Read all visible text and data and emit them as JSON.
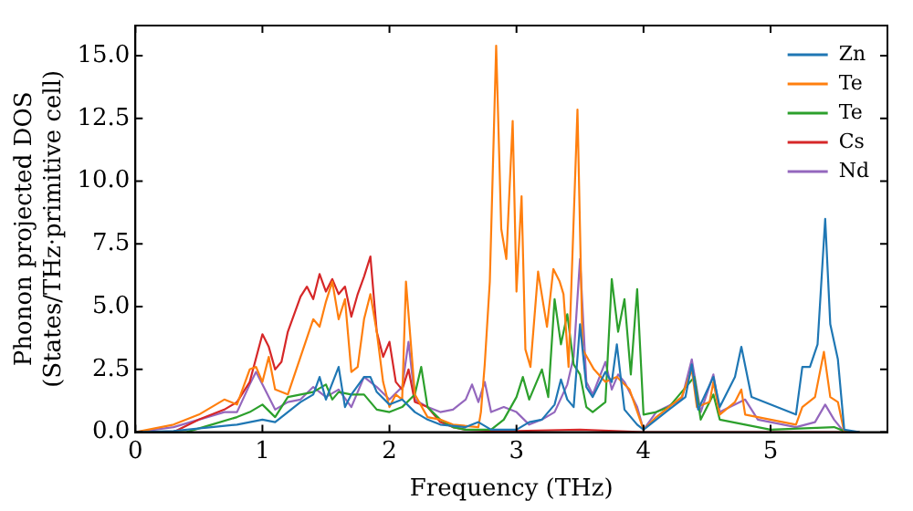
{
  "chart_data": {
    "type": "line",
    "xlabel": "Frequency (THz)",
    "ylabel": "Phonon projected DOS\n(States/THz·primitive cell)",
    "xlim": [
      0,
      5.92
    ],
    "ylim": [
      0,
      16.2
    ],
    "xticks": [
      0,
      1,
      2,
      3,
      4,
      5
    ],
    "yticks": [
      {
        "value": 0,
        "label": "0.0"
      },
      {
        "value": 2.5,
        "label": "2.5"
      },
      {
        "value": 5,
        "label": "5.0"
      },
      {
        "value": 7.5,
        "label": "7.5"
      },
      {
        "value": 10,
        "label": "10.0"
      },
      {
        "value": 12.5,
        "label": "12.5"
      },
      {
        "value": 15,
        "label": "15.0"
      }
    ],
    "grid": false,
    "legend": "top right",
    "marker": "none",
    "line_style": "solid",
    "series": [
      {
        "name": "Zn",
        "color": "#1f77b4",
        "x": [
          0,
          0.3,
          0.6,
          0.8,
          1.0,
          1.1,
          1.2,
          1.3,
          1.4,
          1.45,
          1.5,
          1.6,
          1.65,
          1.7,
          1.8,
          1.85,
          1.9,
          2.0,
          2.1,
          2.2,
          2.3,
          2.4,
          2.6,
          2.7,
          2.8,
          3.0,
          3.1,
          3.2,
          3.3,
          3.35,
          3.4,
          3.45,
          3.5,
          3.55,
          3.6,
          3.7,
          3.75,
          3.79,
          3.85,
          3.95,
          4.0,
          4.2,
          4.33,
          4.38,
          4.43,
          4.55,
          4.6,
          4.72,
          4.77,
          4.85,
          5.2,
          5.25,
          5.31,
          5.37,
          5.43,
          5.47,
          5.53,
          5.58,
          5.7
        ],
        "values": [
          0,
          0.05,
          0.2,
          0.3,
          0.5,
          0.4,
          0.8,
          1.2,
          1.5,
          2.2,
          1.3,
          2.6,
          1.0,
          1.5,
          2.2,
          2.2,
          1.6,
          1.1,
          1.3,
          0.8,
          0.5,
          0.3,
          0.2,
          0.4,
          0.1,
          0.1,
          0.4,
          0.5,
          1.1,
          2.1,
          1.3,
          1.0,
          4.3,
          1.8,
          1.4,
          2.4,
          2.0,
          3.5,
          0.9,
          0.3,
          0.1,
          0.9,
          1.4,
          2.7,
          0.9,
          2.2,
          1.0,
          2.2,
          3.4,
          1.4,
          0.7,
          2.6,
          2.6,
          3.5,
          8.5,
          4.3,
          2.9,
          0.1,
          0
        ]
      },
      {
        "name": "Te",
        "color": "#ff7f0e",
        "x": [
          0,
          0.3,
          0.5,
          0.6,
          0.7,
          0.8,
          0.9,
          0.95,
          1.0,
          1.05,
          1.1,
          1.2,
          1.3,
          1.4,
          1.45,
          1.5,
          1.55,
          1.6,
          1.65,
          1.7,
          1.75,
          1.8,
          1.85,
          1.9,
          1.95,
          2.0,
          2.05,
          2.1,
          2.13,
          2.2,
          2.3,
          2.4,
          2.5,
          2.7,
          2.72,
          2.75,
          2.79,
          2.84,
          2.88,
          2.92,
          2.97,
          3.0,
          3.04,
          3.07,
          3.11,
          3.17,
          3.24,
          3.29,
          3.34,
          3.37,
          3.41,
          3.48,
          3.52,
          3.61,
          3.7,
          3.79,
          3.89,
          4.0,
          4.1,
          4.25,
          4.3,
          4.38,
          4.42,
          4.52,
          4.55,
          4.6,
          4.72,
          4.77,
          4.8,
          5.2,
          5.25,
          5.35,
          5.42,
          5.47,
          5.53,
          5.58,
          5.7
        ],
        "values": [
          0,
          0.3,
          0.7,
          1.0,
          1.3,
          1.1,
          2.5,
          2.6,
          2.0,
          3.0,
          1.7,
          1.5,
          3.0,
          4.5,
          4.2,
          5.2,
          6.0,
          4.5,
          5.3,
          2.4,
          2.6,
          4.5,
          5.5,
          4.0,
          2.0,
          1.0,
          1.5,
          1.3,
          6.0,
          1.5,
          0.6,
          0.5,
          0.3,
          0.2,
          0.8,
          2.7,
          6.0,
          15.4,
          8.1,
          6.9,
          12.4,
          5.6,
          9.4,
          3.3,
          2.6,
          6.4,
          4.2,
          6.5,
          6.0,
          5.5,
          2.6,
          12.85,
          3.3,
          2.5,
          2.0,
          2.2,
          1.7,
          0.1,
          0.6,
          1.2,
          1.4,
          2.5,
          1.0,
          1.2,
          2.0,
          0.7,
          1.2,
          1.7,
          0.7,
          0.3,
          1.0,
          1.4,
          3.2,
          1.4,
          1.2,
          0,
          0
        ]
      },
      {
        "name": "Te",
        "color": "#2ca02c",
        "x": [
          0,
          0.4,
          0.6,
          0.8,
          0.9,
          1.0,
          1.1,
          1.2,
          1.3,
          1.4,
          1.5,
          1.55,
          1.6,
          1.7,
          1.8,
          1.9,
          2.0,
          2.1,
          2.2,
          2.25,
          2.3,
          2.4,
          2.5,
          2.6,
          2.8,
          2.9,
          3.0,
          3.05,
          3.1,
          3.2,
          3.25,
          3.3,
          3.35,
          3.4,
          3.45,
          3.5,
          3.55,
          3.6,
          3.7,
          3.75,
          3.8,
          3.85,
          3.9,
          3.95,
          4.0,
          4.1,
          4.2,
          4.3,
          4.4,
          4.45,
          4.55,
          4.6,
          4.8,
          5.0,
          5.5,
          5.6,
          5.7
        ],
        "values": [
          0,
          0,
          0.3,
          0.6,
          0.8,
          1.1,
          0.6,
          1.4,
          1.5,
          1.6,
          1.9,
          1.3,
          1.6,
          1.5,
          1.5,
          0.9,
          0.8,
          1.0,
          1.5,
          2.6,
          1.0,
          0.5,
          0.2,
          0.1,
          0.1,
          0.5,
          1.4,
          2.2,
          1.3,
          2.5,
          1.4,
          5.3,
          3.5,
          4.7,
          2.7,
          2.3,
          1.0,
          0.8,
          1.2,
          6.1,
          4.0,
          5.3,
          2.3,
          5.7,
          0.7,
          0.8,
          1.0,
          1.6,
          2.2,
          0.5,
          1.5,
          0.5,
          0.3,
          0.1,
          0.2,
          0,
          0
        ]
      },
      {
        "name": "Cs",
        "color": "#d62728",
        "x": [
          0,
          0.3,
          0.5,
          0.7,
          0.8,
          0.9,
          1.0,
          1.05,
          1.1,
          1.15,
          1.2,
          1.3,
          1.35,
          1.4,
          1.45,
          1.5,
          1.55,
          1.6,
          1.65,
          1.7,
          1.75,
          1.8,
          1.85,
          1.9,
          1.95,
          2.0,
          2.05,
          2.1,
          2.15,
          2.2,
          2.3,
          2.4,
          2.5,
          2.6,
          2.8,
          3.0,
          3.5,
          4.0,
          5.7
        ],
        "values": [
          0,
          0,
          0.5,
          0.9,
          1.2,
          2.0,
          3.9,
          3.4,
          2.5,
          2.8,
          4.0,
          5.4,
          5.8,
          5.3,
          6.3,
          5.6,
          6.1,
          5.5,
          5.8,
          4.6,
          5.5,
          6.2,
          7.0,
          4.0,
          3.0,
          3.6,
          2.0,
          1.7,
          2.5,
          1.2,
          1.0,
          0.4,
          0.2,
          0.1,
          0.05,
          0.05,
          0.1,
          0,
          0
        ]
      },
      {
        "name": "Nd",
        "color": "#9467bd",
        "x": [
          0,
          0.3,
          0.5,
          0.7,
          0.8,
          0.9,
          0.95,
          1.0,
          1.1,
          1.2,
          1.3,
          1.4,
          1.5,
          1.6,
          1.7,
          1.8,
          1.9,
          2.0,
          2.1,
          2.15,
          2.2,
          2.3,
          2.4,
          2.5,
          2.6,
          2.65,
          2.7,
          2.75,
          2.8,
          2.9,
          3.0,
          3.1,
          3.2,
          3.3,
          3.4,
          3.45,
          3.5,
          3.55,
          3.6,
          3.7,
          3.75,
          3.8,
          3.85,
          3.95,
          4.0,
          4.1,
          4.3,
          4.38,
          4.45,
          4.55,
          4.6,
          4.8,
          4.9,
          5.2,
          5.35,
          5.43,
          5.5,
          5.58,
          5.7
        ],
        "values": [
          0,
          0.2,
          0.5,
          0.8,
          0.8,
          1.9,
          2.4,
          1.9,
          0.9,
          1.2,
          1.3,
          1.8,
          1.4,
          1.7,
          1.0,
          2.2,
          1.8,
          1.3,
          1.8,
          3.6,
          1.3,
          1.0,
          0.8,
          0.9,
          1.3,
          1.9,
          1.2,
          2.0,
          0.8,
          1.0,
          0.8,
          0.3,
          0.5,
          0.8,
          1.9,
          3.0,
          6.9,
          2.0,
          1.5,
          2.8,
          1.7,
          2.3,
          2.0,
          1.0,
          0.1,
          0.8,
          1.3,
          2.9,
          0.8,
          2.3,
          0.8,
          1.3,
          0.5,
          0.2,
          0.4,
          1.1,
          0.5,
          0,
          0
        ]
      }
    ]
  }
}
